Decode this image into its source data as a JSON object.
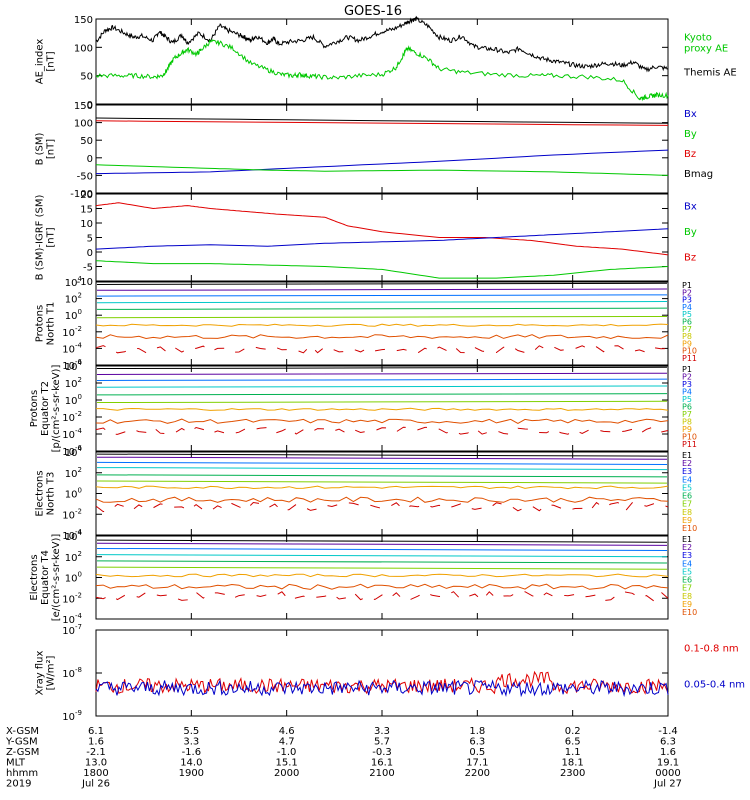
{
  "title": "GOES-16",
  "colors": {
    "black": "#000000",
    "red": "#e00000",
    "green": "#00c800",
    "blue": "#0000c8",
    "p_ramp": [
      "#000000",
      "#5a00a0",
      "#0000e0",
      "#0070ff",
      "#00c8c8",
      "#00b050",
      "#80d000",
      "#c8c800",
      "#f0a000",
      "#e05000",
      "#d00000"
    ]
  },
  "chart_data": [
    {
      "type": "line",
      "id": "ae",
      "ylabel": [
        "AE_index",
        "[nT]"
      ],
      "ylim": [
        0,
        150
      ],
      "yticks": [
        "0",
        "50",
        "100",
        "150"
      ],
      "legend": [
        {
          "name": "Kyoto\nproxy AE",
          "color": "#00c800"
        },
        {
          "name": "Themis AE",
          "color": "#000000"
        }
      ],
      "series": [
        {
          "name": "Themis AE",
          "color": "#000000",
          "x": [
            0,
            0.08,
            0.15,
            0.25,
            0.33,
            0.4,
            0.5,
            0.55,
            0.6,
            0.67,
            0.75,
            0.8,
            0.9,
            1.0,
            1.08,
            1.15,
            1.25,
            1.3,
            1.35,
            1.4,
            1.5,
            1.55,
            1.6,
            1.7,
            1.8,
            1.9,
            2.0,
            2.1,
            2.2,
            2.3,
            2.4,
            2.5,
            2.6,
            2.7,
            2.75,
            2.8,
            2.9,
            3.0,
            3.1,
            3.2,
            3.3,
            3.4,
            3.5,
            3.6,
            3.7,
            3.8,
            3.9,
            4.0,
            4.1,
            4.2,
            4.3,
            4.4,
            4.5,
            4.6,
            4.7,
            4.8,
            4.9,
            5.0
          ],
          "y": [
            110,
            130,
            135,
            125,
            118,
            120,
            112,
            128,
            120,
            108,
            122,
            108,
            125,
            112,
            138,
            130,
            122,
            118,
            112,
            120,
            108,
            115,
            106,
            110,
            112,
            118,
            102,
            110,
            118,
            112,
            120,
            128,
            132,
            142,
            148,
            150,
            138,
            118,
            112,
            120,
            102,
            98,
            96,
            90,
            98,
            88,
            80,
            76,
            72,
            68,
            66,
            70,
            72,
            68,
            74,
            60,
            66,
            62
          ]
        },
        {
          "name": "Kyoto proxy AE",
          "color": "#00c800",
          "x": [
            0,
            0.2,
            0.35,
            0.5,
            0.58,
            0.62,
            0.68,
            0.75,
            0.8,
            0.88,
            0.92,
            1.0,
            1.08,
            1.2,
            1.35,
            1.5,
            1.62,
            1.72,
            1.78,
            1.85,
            1.95,
            2.1,
            2.3,
            2.5,
            2.62,
            2.68,
            2.72,
            2.8,
            2.9,
            3.0,
            3.2,
            3.5,
            3.8,
            4.0,
            4.3,
            4.6,
            4.75,
            4.8,
            4.85,
            4.9,
            5.0
          ],
          "y": [
            50,
            50,
            50,
            48,
            50,
            60,
            80,
            90,
            96,
            88,
            96,
            110,
            108,
            98,
            72,
            60,
            52,
            50,
            52,
            50,
            48,
            46,
            50,
            52,
            64,
            84,
            98,
            90,
            80,
            62,
            56,
            52,
            50,
            50,
            48,
            42,
            10,
            12,
            14,
            16,
            15
          ]
        }
      ]
    },
    {
      "type": "line",
      "id": "bsm",
      "ylabel": [
        "B (SM)",
        "[nT]"
      ],
      "ylim": [
        -100,
        150
      ],
      "yticks": [
        "-100",
        "-50",
        "0",
        "50",
        "100",
        "150"
      ],
      "legend": [
        {
          "name": "Bx",
          "color": "#0000c8"
        },
        {
          "name": "By",
          "color": "#00c800"
        },
        {
          "name": "Bz",
          "color": "#e00000"
        },
        {
          "name": "Bmag",
          "color": "#000000"
        }
      ],
      "series": [
        {
          "name": "Bmag",
          "color": "#000000",
          "x": [
            0,
            5
          ],
          "y": [
            113,
            98
          ]
        },
        {
          "name": "Bz",
          "color": "#e00000",
          "x": [
            0,
            5
          ],
          "y": [
            105,
            92
          ]
        },
        {
          "name": "Bx",
          "color": "#0000c8",
          "x": [
            0,
            1,
            2,
            3,
            4,
            5
          ],
          "y": [
            -45,
            -40,
            -25,
            -10,
            8,
            22
          ]
        },
        {
          "name": "By",
          "color": "#00c800",
          "x": [
            0,
            1,
            1.5,
            2,
            3,
            4,
            5
          ],
          "y": [
            -20,
            -30,
            -35,
            -38,
            -35,
            -40,
            -50
          ]
        }
      ]
    },
    {
      "type": "line",
      "id": "bdiff",
      "ylabel": [
        "B (SM)-IGRF (SM)",
        "[nT]"
      ],
      "ylim": [
        -10,
        20
      ],
      "yticks": [
        "-10",
        "-5",
        "0",
        "5",
        "10",
        "15",
        "20"
      ],
      "legend": [
        {
          "name": "Bx",
          "color": "#0000c8"
        },
        {
          "name": "By",
          "color": "#00c800"
        },
        {
          "name": "Bz",
          "color": "#e00000"
        }
      ],
      "series": [
        {
          "name": "Bz",
          "color": "#e00000",
          "x": [
            0,
            0.2,
            0.5,
            0.8,
            1.0,
            1.3,
            1.6,
            2.0,
            2.2,
            2.5,
            3.0,
            3.4,
            3.8,
            4.2,
            4.6,
            5.0
          ],
          "y": [
            16,
            17,
            15,
            16,
            15,
            14,
            13,
            12,
            9,
            7,
            5,
            5,
            4,
            2,
            1,
            -1
          ]
        },
        {
          "name": "Bx",
          "color": "#0000c8",
          "x": [
            0,
            0.5,
            1.0,
            1.5,
            2.0,
            2.5,
            3.0,
            3.5,
            4.0,
            4.5,
            5.0
          ],
          "y": [
            1,
            2,
            2.5,
            2,
            3,
            3.5,
            4,
            5,
            6,
            7,
            8
          ]
        },
        {
          "name": "By",
          "color": "#00c800",
          "x": [
            0,
            0.5,
            1.0,
            1.5,
            2.0,
            2.5,
            3.0,
            3.5,
            4.0,
            4.5,
            5.0
          ],
          "y": [
            -3,
            -4,
            -4,
            -4.5,
            -5,
            -6,
            -9,
            -9,
            -8,
            -6,
            -5
          ]
        }
      ]
    },
    {
      "type": "line",
      "id": "pn",
      "log": true,
      "ylabel": [
        "Protons",
        "North T1"
      ],
      "ylim_exp": [
        -6,
        4
      ],
      "ytick_exp": [
        -6,
        -4,
        -2,
        0,
        2,
        4
      ],
      "legend": [
        "P1",
        "P2",
        "P3",
        "P4",
        "P5",
        "P6",
        "P7",
        "P8",
        "P9",
        "P10",
        "P11"
      ],
      "levels_exp": [
        3.7,
        3.0,
        2.3,
        1.5,
        0.7,
        -0.3,
        -1.2,
        -2.6,
        -4.1
      ]
    },
    {
      "type": "line",
      "id": "pe",
      "log": true,
      "ylabel": [
        "Protons",
        "Equator T2",
        "[p/(cm²-s-sr-keV)]"
      ],
      "ylim_exp": [
        -6,
        4
      ],
      "ytick_exp": [
        -6,
        -4,
        -2,
        0,
        2,
        4
      ],
      "legend": [
        "P1",
        "P2",
        "P3",
        "P4",
        "P5",
        "P6",
        "P7",
        "P8",
        "P9",
        "P10",
        "P11"
      ],
      "levels_exp": [
        3.7,
        3.0,
        2.3,
        1.5,
        0.6,
        -0.3,
        -1.1,
        -2.5,
        -3.6
      ]
    },
    {
      "type": "line",
      "id": "en",
      "log": true,
      "ylabel": [
        "Electrons",
        "North T3"
      ],
      "ylim_exp": [
        -4,
        4
      ],
      "ytick_exp": [
        -4,
        -2,
        0,
        2,
        4
      ],
      "legend": [
        "E1",
        "E2",
        "E3",
        "E4",
        "E5",
        "E6",
        "E7",
        "E8",
        "E9",
        "E10"
      ],
      "levels_exp": [
        3.8,
        3.5,
        3.0,
        2.5,
        1.8,
        1.2,
        0.6,
        -0.6,
        -1.3
      ]
    },
    {
      "type": "line",
      "id": "ee",
      "log": true,
      "ylabel": [
        "Electrons",
        "Equator T4",
        "[e/(cm²-s-sr-keV)]"
      ],
      "ylim_exp": [
        -4,
        4
      ],
      "ytick_exp": [
        -4,
        -2,
        0,
        2,
        4
      ],
      "legend": [
        "E1",
        "E2",
        "E3",
        "E4",
        "E5",
        "E6",
        "E7",
        "E8",
        "E9",
        "E10"
      ],
      "levels_exp": [
        3.6,
        3.3,
        2.8,
        2.2,
        1.6,
        1.0,
        0.2,
        -0.9,
        -1.8
      ]
    },
    {
      "type": "line",
      "id": "xray",
      "log": true,
      "ylabel": [
        "Xray flux",
        "[W/m²]"
      ],
      "ylim_exp": [
        -9,
        -7
      ],
      "ytick_exp": [
        -9,
        -8,
        -7
      ],
      "legend": [
        {
          "name": "0.1-0.8 nm",
          "color": "#e00000"
        },
        {
          "name": "0.05-0.4 nm",
          "color": "#0000c8"
        }
      ],
      "levels_exp": [
        -8.3,
        -8.35
      ]
    }
  ],
  "xaxis": {
    "row_labels": [
      "X-GSM",
      "Y-GSM",
      "Z-GSM",
      "MLT",
      "hhmm",
      "2019"
    ],
    "columns": [
      [
        "6.1",
        "1.6",
        "-2.1",
        "13.0",
        "1800",
        "Jul 26"
      ],
      [
        "5.5",
        "3.3",
        "-1.6",
        "14.0",
        "1900",
        ""
      ],
      [
        "4.6",
        "4.7",
        "-1.0",
        "15.1",
        "2000",
        ""
      ],
      [
        "3.3",
        "5.7",
        "-0.3",
        "16.1",
        "2100",
        ""
      ],
      [
        "1.8",
        "6.3",
        "0.5",
        "17.1",
        "2200",
        ""
      ],
      [
        "0.2",
        "6.5",
        "1.1",
        "18.1",
        "2300",
        ""
      ],
      [
        "-1.4",
        "6.3",
        "1.6",
        "19.1",
        "0000",
        "Jul 27"
      ]
    ]
  }
}
